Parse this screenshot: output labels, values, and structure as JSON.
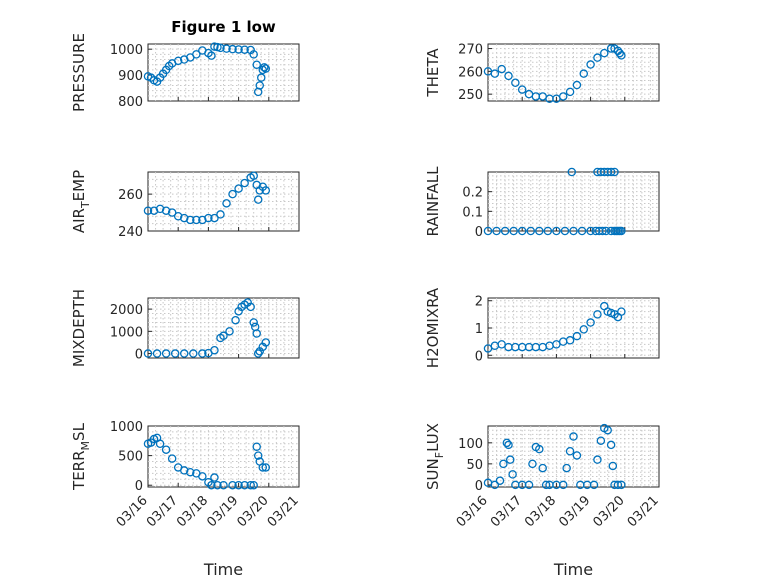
{
  "figure": {
    "title": "Figure 1 low",
    "marker_color": "#0072BD",
    "xlabel": "Time",
    "x_ticks": [
      "03/16",
      "03/17",
      "03/18",
      "03/19",
      "03/20",
      "03/21"
    ]
  },
  "chart_data": [
    {
      "type": "scatter",
      "panel": "top-left",
      "ylabel": "PRESSURE",
      "title": "Figure 1 low",
      "yticks": [
        800,
        900,
        1000
      ],
      "ylim": [
        800,
        1020
      ],
      "grid": true,
      "marker": "circle",
      "x_unit": "days since 03/16",
      "xlim": [
        0,
        5
      ],
      "x": [
        0.0,
        0.1,
        0.2,
        0.3,
        0.4,
        0.5,
        0.6,
        0.7,
        0.8,
        1.0,
        1.2,
        1.4,
        1.6,
        1.8,
        2.0,
        2.1,
        2.2,
        2.3,
        2.4,
        2.6,
        2.8,
        3.0,
        3.2,
        3.4,
        3.5,
        3.6,
        3.65,
        3.7,
        3.75,
        3.8,
        3.85,
        3.9
      ],
      "y": [
        895,
        890,
        880,
        875,
        890,
        905,
        920,
        935,
        945,
        955,
        960,
        968,
        980,
        995,
        985,
        975,
        1010,
        1008,
        1005,
        1002,
        1000,
        999,
        998,
        997,
        980,
        940,
        835,
        860,
        890,
        920,
        930,
        925
      ]
    },
    {
      "type": "scatter",
      "panel": "top-right",
      "ylabel": "THETA",
      "yticks": [
        250,
        260,
        270
      ],
      "ylim": [
        247,
        272
      ],
      "grid": true,
      "x": [
        0.0,
        0.2,
        0.4,
        0.6,
        0.8,
        1.0,
        1.2,
        1.4,
        1.6,
        1.8,
        2.0,
        2.2,
        2.4,
        2.6,
        2.8,
        3.0,
        3.2,
        3.4,
        3.6,
        3.7,
        3.8,
        3.85,
        3.9
      ],
      "y": [
        260,
        259,
        261,
        258,
        255,
        252,
        250,
        249,
        249,
        248,
        248,
        249,
        251,
        254,
        259,
        263,
        266,
        268,
        270,
        270,
        269,
        268,
        267
      ]
    },
    {
      "type": "scatter",
      "panel": "row2-left",
      "ylabel": "AIR_TEMP",
      "ylabel_parts": [
        "AIR",
        "T",
        "EMP"
      ],
      "yticks": [
        240,
        260
      ],
      "ylim": [
        240,
        272
      ],
      "grid": true,
      "x": [
        0.0,
        0.2,
        0.4,
        0.6,
        0.8,
        1.0,
        1.2,
        1.4,
        1.6,
        1.8,
        2.0,
        2.2,
        2.4,
        2.6,
        2.8,
        3.0,
        3.2,
        3.4,
        3.5,
        3.6,
        3.65,
        3.7,
        3.8,
        3.9
      ],
      "y": [
        251,
        251,
        252,
        251,
        250,
        248,
        247,
        246,
        246,
        246,
        247,
        247,
        249,
        255,
        260,
        263,
        266,
        269,
        270,
        265,
        257,
        262,
        264,
        262
      ]
    },
    {
      "type": "scatter",
      "panel": "row2-right",
      "ylabel": "RAINFALL",
      "yticks": [
        0,
        0.1,
        0.2
      ],
      "ytick_labels": [
        "0",
        "0.1",
        "0.2"
      ],
      "ylim": [
        0,
        0.3
      ],
      "grid": true,
      "x": [
        0.0,
        0.25,
        0.5,
        0.75,
        1.0,
        1.25,
        1.5,
        1.75,
        2.0,
        2.25,
        2.5,
        2.75,
        3.0,
        3.15,
        3.25,
        3.35,
        3.45,
        3.6,
        3.7,
        3.75,
        3.8,
        3.85,
        3.9,
        2.45,
        3.2,
        3.3,
        3.4,
        3.5,
        3.6,
        3.7
      ],
      "y": [
        0,
        0,
        0,
        0,
        0,
        0,
        0,
        0,
        0,
        0,
        0,
        0,
        0,
        0,
        0,
        0,
        0,
        0,
        0,
        0,
        0,
        0,
        0,
        0.3,
        0.3,
        0.3,
        0.3,
        0.3,
        0.3,
        0.3
      ]
    },
    {
      "type": "scatter",
      "panel": "row3-left",
      "ylabel": "MIXDEPTH",
      "yticks": [
        0,
        1000,
        2000
      ],
      "ylim": [
        -200,
        2500
      ],
      "grid": true,
      "x": [
        0.0,
        0.3,
        0.6,
        0.9,
        1.2,
        1.5,
        1.8,
        2.0,
        2.2,
        2.4,
        2.5,
        2.7,
        2.9,
        3.0,
        3.1,
        3.2,
        3.3,
        3.4,
        3.5,
        3.55,
        3.6,
        3.65,
        3.7,
        3.8,
        3.9
      ],
      "y": [
        0,
        0,
        0,
        0,
        0,
        0,
        0,
        20,
        150,
        700,
        800,
        1000,
        1500,
        1900,
        2100,
        2200,
        2300,
        2100,
        1400,
        1200,
        900,
        0,
        100,
        300,
        500
      ]
    },
    {
      "type": "scatter",
      "panel": "row3-right",
      "ylabel": "H2OMIXRA",
      "yticks": [
        0,
        1,
        2
      ],
      "ylim": [
        -0.1,
        2.1
      ],
      "grid": true,
      "x": [
        0.0,
        0.2,
        0.4,
        0.6,
        0.8,
        1.0,
        1.2,
        1.4,
        1.6,
        1.8,
        2.0,
        2.2,
        2.4,
        2.6,
        2.8,
        3.0,
        3.2,
        3.4,
        3.5,
        3.6,
        3.7,
        3.8,
        3.9
      ],
      "y": [
        0.25,
        0.35,
        0.4,
        0.3,
        0.3,
        0.3,
        0.3,
        0.3,
        0.3,
        0.35,
        0.4,
        0.5,
        0.55,
        0.7,
        0.95,
        1.2,
        1.5,
        1.8,
        1.6,
        1.55,
        1.5,
        1.4,
        1.6
      ]
    },
    {
      "type": "scatter",
      "panel": "bottom-left",
      "ylabel": "TERR_MSL",
      "ylabel_parts": [
        "TERR",
        "M",
        "SL"
      ],
      "yticks": [
        0,
        500,
        1000
      ],
      "ylim": [
        -30,
        1000
      ],
      "grid": true,
      "x": [
        0.0,
        0.1,
        0.2,
        0.3,
        0.4,
        0.6,
        0.8,
        1.0,
        1.2,
        1.4,
        1.6,
        1.8,
        2.0,
        2.1,
        2.2,
        2.3,
        2.5,
        2.8,
        3.0,
        3.2,
        3.4,
        3.5,
        3.6,
        3.65,
        3.7,
        3.8,
        3.9
      ],
      "y": [
        700,
        720,
        780,
        800,
        700,
        600,
        450,
        300,
        250,
        220,
        200,
        150,
        50,
        0,
        130,
        0,
        0,
        0,
        0,
        0,
        0,
        0,
        650,
        500,
        400,
        300,
        300
      ]
    },
    {
      "type": "scatter",
      "panel": "bottom-right",
      "ylabel": "SUN_FLUX",
      "ylabel_parts": [
        "SUN",
        "F",
        "LUX"
      ],
      "yticks": [
        0,
        50,
        100
      ],
      "ylim": [
        -5,
        140
      ],
      "grid": true,
      "x": [
        0.0,
        0.2,
        0.35,
        0.45,
        0.55,
        0.6,
        0.65,
        0.72,
        0.8,
        1.0,
        1.2,
        1.3,
        1.4,
        1.5,
        1.6,
        1.7,
        1.8,
        2.0,
        2.2,
        2.3,
        2.4,
        2.5,
        2.6,
        2.7,
        2.9,
        3.1,
        3.2,
        3.3,
        3.4,
        3.5,
        3.6,
        3.65,
        3.7,
        3.8,
        3.9
      ],
      "y": [
        5,
        0,
        10,
        50,
        100,
        95,
        60,
        25,
        0,
        0,
        0,
        50,
        90,
        85,
        40,
        0,
        0,
        0,
        0,
        40,
        80,
        115,
        70,
        0,
        0,
        0,
        60,
        105,
        135,
        130,
        95,
        45,
        0,
        0,
        0
      ]
    }
  ]
}
